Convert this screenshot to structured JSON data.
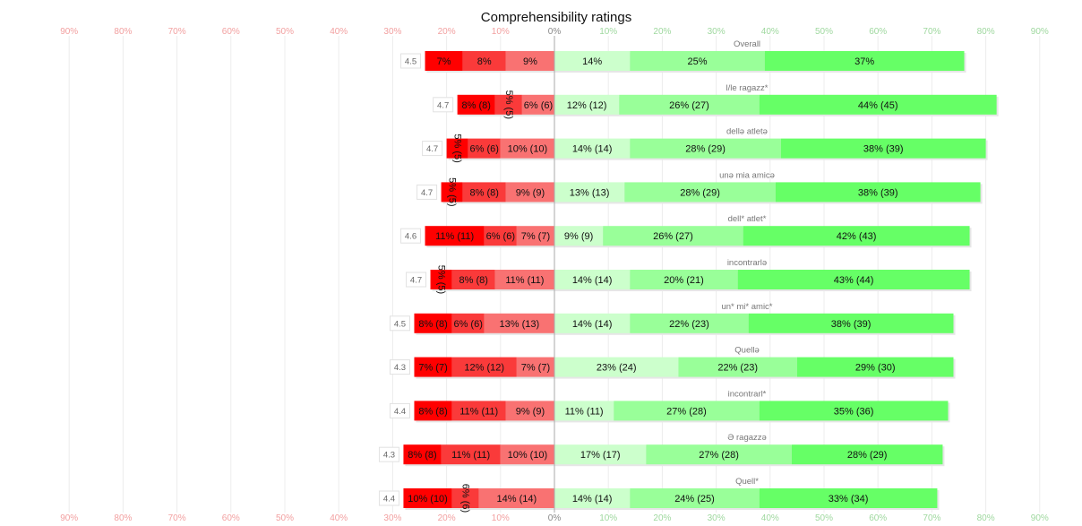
{
  "chart_data": {
    "type": "bar",
    "title": "Comprehensibility ratings",
    "stacking": "diverging",
    "xlim": [
      -90,
      90
    ],
    "ticks": [
      -90,
      -80,
      -70,
      -60,
      -50,
      -40,
      -30,
      -20,
      -10,
      0,
      10,
      20,
      30,
      40,
      50,
      60,
      70,
      80,
      90
    ],
    "tick_labels": [
      "90%",
      "80%",
      "70%",
      "60%",
      "50%",
      "40%",
      "30%",
      "20%",
      "10%",
      "0%",
      "10%",
      "20%",
      "30%",
      "40%",
      "50%",
      "60%",
      "70%",
      "80%",
      "90%"
    ],
    "grid": true,
    "colors": {
      "neg": [
        "#ff0000",
        "#fa3a3a",
        "#f97272"
      ],
      "pos": [
        "#ccffcc",
        "#99ff99",
        "#66ff66"
      ],
      "negative_tick": "#f2a0a0",
      "positive_tick": "#9fd89f"
    },
    "categories": [
      {
        "label": "Overall",
        "mean": "4.5",
        "neg": [
          {
            "v": 7,
            "t": "7%"
          },
          {
            "v": 8,
            "t": "8%"
          },
          {
            "v": 9,
            "t": "9%"
          }
        ],
        "pos": [
          {
            "v": 14,
            "t": "14%"
          },
          {
            "v": 25,
            "t": "25%"
          },
          {
            "v": 37,
            "t": "37%"
          }
        ]
      },
      {
        "label": "l/le ragazz*",
        "mean": "4.7",
        "neg": [
          {
            "v": 7,
            "t": "8% (8)"
          },
          {
            "v": 5,
            "t": "5% (5)"
          },
          {
            "v": 6,
            "t": "6% (6)"
          }
        ],
        "pos": [
          {
            "v": 12,
            "t": "12% (12)"
          },
          {
            "v": 26,
            "t": "26% (27)"
          },
          {
            "v": 44,
            "t": "44% (45)"
          }
        ]
      },
      {
        "label": "dellə atletə",
        "mean": "4.7",
        "neg": [
          {
            "v": 4,
            "t": "5% (5)"
          },
          {
            "v": 6,
            "t": "6% (6)"
          },
          {
            "v": 10,
            "t": "10% (10)"
          }
        ],
        "pos": [
          {
            "v": 14,
            "t": "14% (14)"
          },
          {
            "v": 28,
            "t": "28% (29)"
          },
          {
            "v": 38,
            "t": "38% (39)"
          }
        ]
      },
      {
        "label": "unə mia amicə",
        "mean": "4.7",
        "neg": [
          {
            "v": 4,
            "t": "5% (5)"
          },
          {
            "v": 8,
            "t": "8% (8)"
          },
          {
            "v": 9,
            "t": "9% (9)"
          }
        ],
        "pos": [
          {
            "v": 13,
            "t": "13% (13)"
          },
          {
            "v": 28,
            "t": "28% (29)"
          },
          {
            "v": 38,
            "t": "38% (39)"
          }
        ]
      },
      {
        "label": "dell* atlet*",
        "mean": "4.6",
        "neg": [
          {
            "v": 11,
            "t": "11% (11)"
          },
          {
            "v": 6,
            "t": "6% (6)"
          },
          {
            "v": 7,
            "t": "7% (7)"
          }
        ],
        "pos": [
          {
            "v": 9,
            "t": "9% (9)"
          },
          {
            "v": 26,
            "t": "26% (27)"
          },
          {
            "v": 42,
            "t": "42% (43)"
          }
        ]
      },
      {
        "label": "incontrarlə",
        "mean": "4.7",
        "neg": [
          {
            "v": 4,
            "t": "5% (5)"
          },
          {
            "v": 8,
            "t": "8% (8)"
          },
          {
            "v": 11,
            "t": "11% (11)"
          }
        ],
        "pos": [
          {
            "v": 14,
            "t": "14% (14)"
          },
          {
            "v": 20,
            "t": "20% (21)"
          },
          {
            "v": 43,
            "t": "43% (44)"
          }
        ]
      },
      {
        "label": "un* mi* amic*",
        "mean": "4.5",
        "neg": [
          {
            "v": 7,
            "t": "8% (8)"
          },
          {
            "v": 6,
            "t": "6% (6)"
          },
          {
            "v": 13,
            "t": "13% (13)"
          }
        ],
        "pos": [
          {
            "v": 14,
            "t": "14% (14)"
          },
          {
            "v": 22,
            "t": "22% (23)"
          },
          {
            "v": 38,
            "t": "38% (39)"
          }
        ]
      },
      {
        "label": "Quellə",
        "mean": "4.3",
        "neg": [
          {
            "v": 7,
            "t": "7% (7)"
          },
          {
            "v": 12,
            "t": "12% (12)"
          },
          {
            "v": 7,
            "t": "7% (7)"
          }
        ],
        "pos": [
          {
            "v": 23,
            "t": "23% (24)"
          },
          {
            "v": 22,
            "t": "22% (23)"
          },
          {
            "v": 29,
            "t": "29% (30)"
          }
        ]
      },
      {
        "label": "incontrarl*",
        "mean": "4.4",
        "neg": [
          {
            "v": 7,
            "t": "8% (8)"
          },
          {
            "v": 10,
            "t": "11% (11)"
          },
          {
            "v": 9,
            "t": "9% (9)"
          }
        ],
        "pos": [
          {
            "v": 11,
            "t": "11% (11)"
          },
          {
            "v": 27,
            "t": "27% (28)"
          },
          {
            "v": 35,
            "t": "35% (36)"
          }
        ]
      },
      {
        "label": "Ə ragazzə",
        "mean": "4.3",
        "neg": [
          {
            "v": 7,
            "t": "8% (8)"
          },
          {
            "v": 11,
            "t": "11% (11)"
          },
          {
            "v": 10,
            "t": "10% (10)"
          }
        ],
        "pos": [
          {
            "v": 17,
            "t": "17% (17)"
          },
          {
            "v": 27,
            "t": "27% (28)"
          },
          {
            "v": 28,
            "t": "28% (29)"
          }
        ]
      },
      {
        "label": "Quell*",
        "mean": "4.4",
        "neg": [
          {
            "v": 9,
            "t": "10% (10)"
          },
          {
            "v": 5,
            "t": "6% (6)"
          },
          {
            "v": 14,
            "t": "14% (14)"
          }
        ],
        "pos": [
          {
            "v": 14,
            "t": "14% (14)"
          },
          {
            "v": 24,
            "t": "24% (25)"
          },
          {
            "v": 33,
            "t": "33% (34)"
          }
        ]
      }
    ]
  }
}
